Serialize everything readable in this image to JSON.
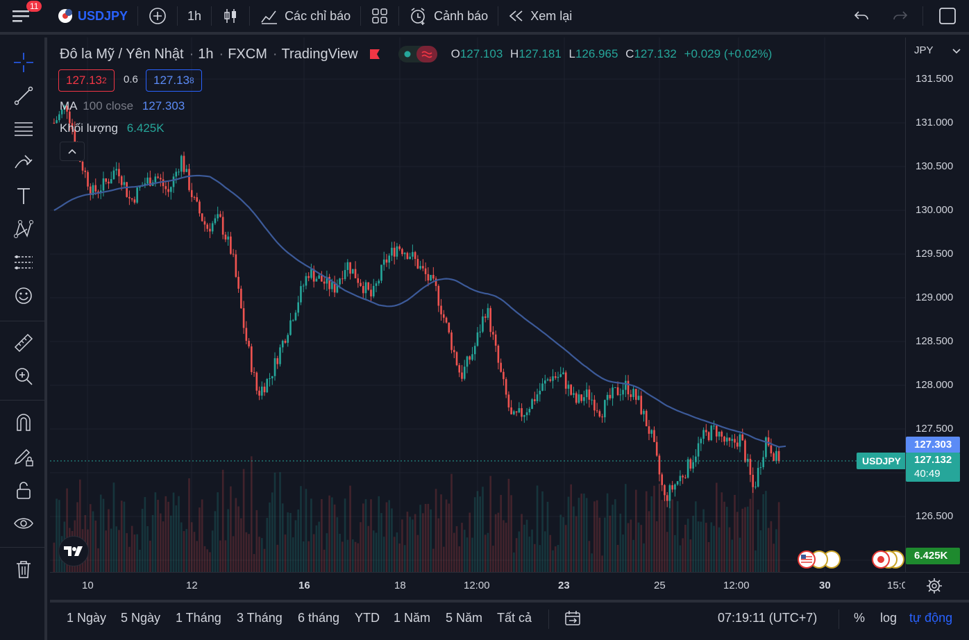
{
  "topbar": {
    "notif_count": "11",
    "symbol": "USDJPY",
    "interval": "1h",
    "indicators_label": "Các chỉ báo",
    "alerts_label": "Cảnh báo",
    "replay_label": "Xem lại"
  },
  "legend": {
    "title": "Đô la Mỹ / Yên Nhật",
    "interval": "1h",
    "exchange": "FXCM",
    "source": "TradingView",
    "o_label": "O",
    "o": "127.103",
    "h_label": "H",
    "h": "127.181",
    "l_label": "L",
    "l": "126.965",
    "c_label": "C",
    "c": "127.132",
    "change": "+0.029 (+0.02%)",
    "sell_price": "127.13",
    "sell_sup": "2",
    "spread": "0.6",
    "buy_price": "127.13",
    "buy_sup": "8"
  },
  "indicators": {
    "ma_name": "MA",
    "ma_params": "100 close",
    "ma_value": "127.303",
    "vol_name": "Khối lượng",
    "vol_value": "6.425K"
  },
  "price_axis": {
    "currency": "JPY",
    "ticks": [
      "131.500",
      "131.000",
      "130.500",
      "130.000",
      "129.500",
      "129.000",
      "128.500",
      "128.000",
      "127.500",
      "126.500"
    ],
    "ma_label": "127.303",
    "last_symbol": "USDJPY",
    "last_price": "127.132",
    "countdown": "40:49",
    "volume_label": "6.425K"
  },
  "time_axis": {
    "labels": [
      "10",
      "12",
      "16",
      "18",
      "12:00",
      "23",
      "25",
      "12:00",
      "30",
      "15:0"
    ]
  },
  "bottombar": {
    "ranges": [
      "1 Ngày",
      "5 Ngày",
      "1 Tháng",
      "3 Tháng",
      "6 tháng",
      "YTD",
      "1 Năm",
      "5 Năm",
      "Tất cả"
    ],
    "clock": "07:19:11 (UTC+7)",
    "percent": "%",
    "log": "log",
    "auto": "tự động"
  },
  "colors": {
    "up": "#26a69a",
    "down": "#ef5350",
    "ma": "#3c5a99",
    "accent": "#2962ff",
    "bg": "#131722"
  },
  "chart_data": {
    "type": "candlestick",
    "y_range": [
      126.3,
      131.7
    ],
    "last_close": 127.132,
    "ma_last": 127.303,
    "close_path": [
      131.0,
      131.2,
      130.6,
      130.2,
      130.3,
      130.5,
      130.1,
      130.3,
      130.4,
      130.2,
      130.6,
      130.1,
      129.8,
      129.9,
      129.5,
      128.6,
      127.9,
      128.1,
      128.5,
      128.9,
      129.3,
      129.2,
      129.1,
      129.4,
      129.2,
      129.0,
      129.4,
      129.6,
      129.5,
      129.3,
      129.1,
      128.6,
      128.1,
      128.4,
      128.9,
      128.2,
      127.6,
      127.7,
      127.9,
      128.1,
      128.1,
      127.8,
      127.9,
      127.7,
      127.9,
      128.0,
      127.8,
      127.4,
      126.7,
      126.9,
      127.1,
      127.4,
      127.5,
      127.3,
      127.4,
      126.8,
      127.4,
      127.1
    ]
  }
}
